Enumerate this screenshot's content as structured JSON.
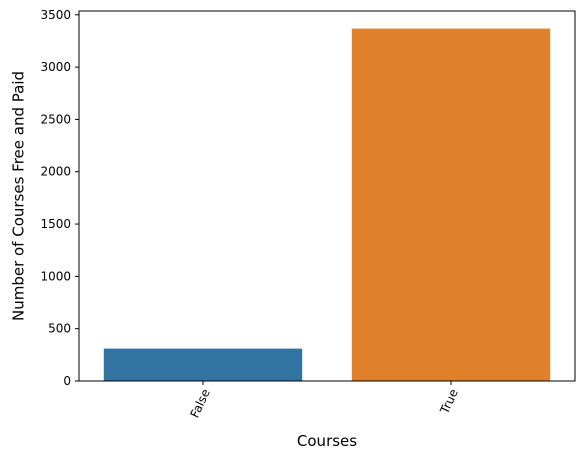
{
  "chart_data": {
    "type": "bar",
    "categories": [
      "False",
      "True"
    ],
    "values": [
      310,
      3368
    ],
    "colors": [
      "#3274a1",
      "#e1812c"
    ],
    "xlabel": "Courses",
    "ylabel": "Number of Courses Free and Paid",
    "ylim": [
      0,
      3536
    ],
    "yticks": [
      0,
      500,
      1000,
      1500,
      2000,
      2500,
      3000,
      3500
    ],
    "ytick_labels": [
      "0",
      "500",
      "1000",
      "1500",
      "2000",
      "2500",
      "3000",
      "3500"
    ],
    "xtick_rotation_deg": -65,
    "grid": false,
    "legend": "none"
  }
}
